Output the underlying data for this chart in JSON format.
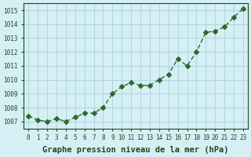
{
  "x": [
    0,
    1,
    2,
    3,
    4,
    5,
    6,
    7,
    8,
    9,
    10,
    11,
    12,
    13,
    14,
    15,
    16,
    17,
    18,
    19,
    20,
    21,
    22,
    23
  ],
  "y": [
    1007.4,
    1007.1,
    1007.0,
    1007.2,
    1007.0,
    1007.3,
    1007.6,
    1007.6,
    1008.0,
    1009.0,
    1009.5,
    1009.8,
    1009.6,
    1009.6,
    1010.0,
    1010.4,
    1011.5,
    1011.0,
    1012.0,
    1013.4,
    1013.5,
    1013.8,
    1014.5,
    1015.1
  ],
  "line_color": "#2d6a2d",
  "marker": "D",
  "marker_size": 3,
  "bg_color": "#d6eff5",
  "grid_color": "#b0d8e0",
  "xlabel": "Graphe pression niveau de la mer (hPa)",
  "xlabel_color": "#1a4a1a",
  "tick_color": "#1a4a1a",
  "ylim": [
    1006.5,
    1015.5
  ],
  "yticks": [
    1007,
    1008,
    1009,
    1010,
    1011,
    1012,
    1013,
    1014,
    1015
  ],
  "xticks": [
    0,
    1,
    2,
    3,
    4,
    5,
    6,
    7,
    8,
    9,
    10,
    11,
    12,
    13,
    14,
    15,
    16,
    17,
    18,
    19,
    20,
    21,
    22,
    23
  ],
  "title_fontsize": 8,
  "xlabel_fontsize": 7.5
}
